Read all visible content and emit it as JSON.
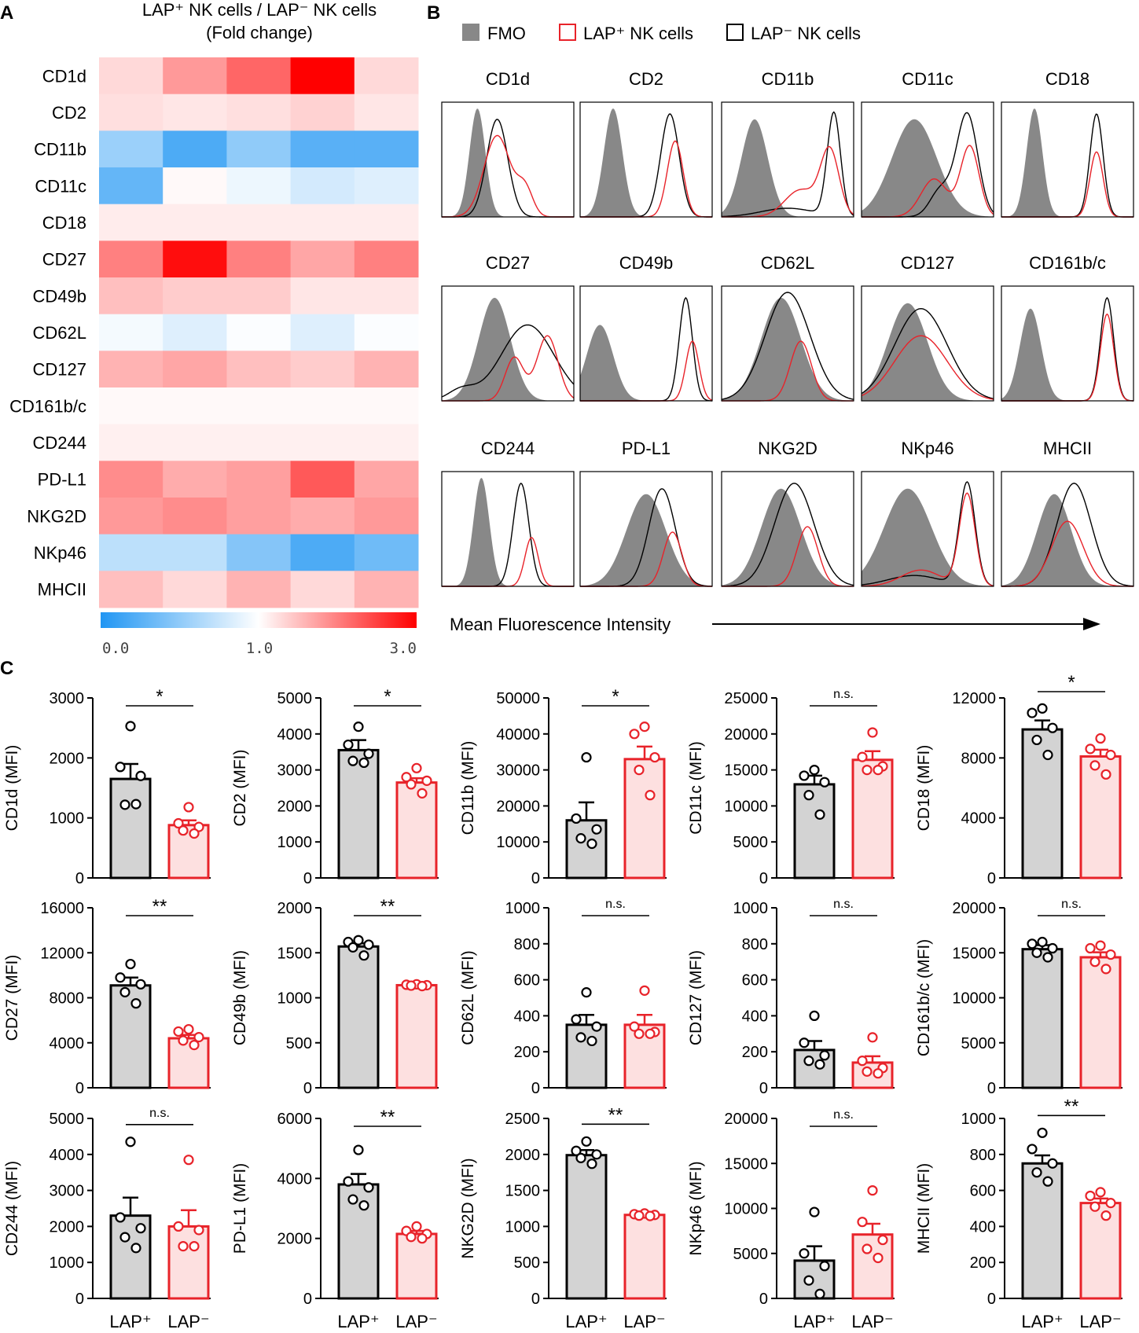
{
  "panels": {
    "a": "A",
    "b": "B",
    "c": "C"
  },
  "heatmap": {
    "title_line1": "LAP⁺ NK cells / LAP⁻ NK cells",
    "title_line2": "(Fold change)",
    "colorbar_labels": [
      "0.0",
      "1.0",
      "3.0"
    ],
    "colors": {
      "low": "#2196f3",
      "mid": "#ffffff",
      "high": "#ff0000"
    },
    "rows": [
      "CD1d",
      "CD2",
      "CD11b",
      "CD11c",
      "CD18",
      "CD27",
      "CD49b",
      "CD62L",
      "CD127",
      "CD161b/c",
      "CD244",
      "PD-L1",
      "NKG2D",
      "NKp46",
      "MHCII"
    ],
    "values": [
      [
        1.3,
        1.8,
        2.2,
        3.0,
        1.3
      ],
      [
        1.25,
        1.2,
        1.25,
        1.35,
        1.2
      ],
      [
        0.55,
        0.2,
        0.5,
        0.25,
        0.25
      ],
      [
        0.3,
        1.05,
        0.92,
        0.8,
        0.85
      ],
      [
        1.15,
        1.15,
        1.15,
        1.15,
        1.15
      ],
      [
        2.0,
        2.9,
        2.0,
        1.7,
        2.0
      ],
      [
        1.5,
        1.4,
        1.4,
        1.2,
        1.2
      ],
      [
        0.95,
        0.85,
        0.98,
        0.85,
        0.98
      ],
      [
        1.6,
        1.7,
        1.5,
        1.4,
        1.6
      ],
      [
        1.05,
        1.05,
        1.05,
        1.05,
        1.05
      ],
      [
        1.12,
        1.12,
        1.12,
        1.12,
        1.12
      ],
      [
        1.9,
        1.65,
        1.75,
        2.3,
        1.7
      ],
      [
        1.8,
        1.9,
        1.75,
        1.65,
        1.8
      ],
      [
        0.7,
        0.7,
        0.45,
        0.2,
        0.35
      ],
      [
        1.5,
        1.3,
        1.6,
        1.3,
        1.6
      ]
    ]
  },
  "histograms": {
    "legend": {
      "fmo": "FMO",
      "pos": "LAP⁺ NK cells",
      "neg": "LAP⁻ NK cells"
    },
    "colors": {
      "fmo": "#888888",
      "pos": "#e8232a",
      "neg": "#000000"
    },
    "x_axis_label": "Mean Fluorescence Intensity",
    "markers": [
      {
        "name": "CD1d",
        "fmo": [
          0.27,
          0.06,
          1.0
        ],
        "neg": [
          0.42,
          0.08,
          0.9
        ],
        "pos": [
          0.42,
          0.1,
          0.75,
          0.63,
          0.06,
          0.25
        ]
      },
      {
        "name": "CD2",
        "fmo": [
          0.25,
          0.07,
          1.0
        ],
        "neg": [
          0.68,
          0.07,
          0.95
        ],
        "pos": [
          0.72,
          0.06,
          0.7
        ]
      },
      {
        "name": "CD11b",
        "fmo": [
          0.25,
          0.1,
          0.9
        ],
        "neg": [
          0.85,
          0.05,
          0.95,
          0.5,
          0.2,
          0.08
        ],
        "pos": [
          0.82,
          0.07,
          0.6,
          0.6,
          0.12,
          0.25
        ]
      },
      {
        "name": "CD11c",
        "fmo": [
          0.4,
          0.17,
          0.9
        ],
        "neg": [
          0.8,
          0.08,
          0.95,
          0.6,
          0.08,
          0.25
        ],
        "pos": [
          0.82,
          0.07,
          0.65,
          0.55,
          0.1,
          0.35
        ]
      },
      {
        "name": "CD18",
        "fmo": [
          0.25,
          0.06,
          1.0
        ],
        "neg": [
          0.72,
          0.05,
          0.95
        ],
        "pos": [
          0.72,
          0.05,
          0.6
        ]
      },
      {
        "name": "CD27",
        "fmo": [
          0.4,
          0.12,
          0.95
        ],
        "neg": [
          0.65,
          0.2,
          0.7,
          0.15,
          0.1,
          0.1
        ],
        "pos": [
          0.8,
          0.08,
          0.6,
          0.55,
          0.07,
          0.4
        ]
      },
      {
        "name": "CD49b",
        "fmo": [
          0.15,
          0.1,
          0.7
        ],
        "neg": [
          0.8,
          0.05,
          0.95
        ],
        "pos": [
          0.85,
          0.05,
          0.55
        ]
      },
      {
        "name": "CD62L",
        "fmo": [
          0.45,
          0.15,
          0.95
        ],
        "neg": [
          0.5,
          0.17,
          1.0
        ],
        "pos": [
          0.6,
          0.08,
          0.55
        ]
      },
      {
        "name": "CD127",
        "fmo": [
          0.35,
          0.15,
          0.9
        ],
        "neg": [
          0.45,
          0.2,
          0.85
        ],
        "pos": [
          0.45,
          0.2,
          0.6
        ]
      },
      {
        "name": "CD161b/c",
        "fmo": [
          0.22,
          0.08,
          0.85
        ],
        "neg": [
          0.8,
          0.05,
          0.95
        ],
        "pos": [
          0.8,
          0.05,
          0.8
        ]
      },
      {
        "name": "CD244",
        "fmo": [
          0.3,
          0.06,
          1.0
        ],
        "neg": [
          0.6,
          0.06,
          0.95
        ],
        "pos": [
          0.68,
          0.05,
          0.45
        ]
      },
      {
        "name": "PD-L1",
        "fmo": [
          0.5,
          0.15,
          0.85
        ],
        "neg": [
          0.62,
          0.1,
          0.9
        ],
        "pos": [
          0.7,
          0.07,
          0.5
        ]
      },
      {
        "name": "NKG2D",
        "fmo": [
          0.45,
          0.15,
          0.9
        ],
        "neg": [
          0.55,
          0.15,
          0.95
        ],
        "pos": [
          0.65,
          0.08,
          0.55
        ]
      },
      {
        "name": "NKp46",
        "fmo": [
          0.35,
          0.18,
          0.9
        ],
        "neg": [
          0.8,
          0.06,
          0.95,
          0.4,
          0.2,
          0.1
        ],
        "pos": [
          0.8,
          0.06,
          0.85,
          0.45,
          0.15,
          0.15
        ]
      },
      {
        "name": "MHCII",
        "fmo": [
          0.4,
          0.13,
          0.85
        ],
        "neg": [
          0.55,
          0.13,
          0.95
        ],
        "pos": [
          0.5,
          0.12,
          0.6
        ]
      }
    ]
  },
  "chart_data": {
    "type": "bar",
    "categories": [
      "LAP⁺",
      "LAP⁻"
    ],
    "colors": {
      "pos_fill": "#d3d3d3",
      "pos_edge": "#000000",
      "neg_fill": "#fde0e0",
      "neg_edge": "#e8232a"
    },
    "panels": [
      {
        "ylabel": "CD1d (MFI)",
        "ylim": [
          0,
          3000
        ],
        "ticks": [
          "0",
          "1000",
          "2000",
          "3000"
        ],
        "means": [
          1650,
          880
        ],
        "sems": [
          250,
          80
        ],
        "points": [
          [
            2530,
            1850,
            1700,
            1220,
            1230
          ],
          [
            1180,
            910,
            850,
            790,
            740
          ]
        ],
        "sig": "*"
      },
      {
        "ylabel": "CD2 (MFI)",
        "ylim": [
          0,
          5000
        ],
        "ticks": [
          "0",
          "1000",
          "2000",
          "3000",
          "4000",
          "5000"
        ],
        "means": [
          3550,
          2650
        ],
        "sems": [
          280,
          120
        ],
        "points": [
          [
            4200,
            3700,
            3450,
            3250,
            3200
          ],
          [
            3050,
            2800,
            2700,
            2600,
            2350
          ]
        ],
        "sig": "*"
      },
      {
        "ylabel": "CD11b (MFI)",
        "ylim": [
          0,
          50000
        ],
        "ticks": [
          "0",
          "10000",
          "20000",
          "30000",
          "40000",
          "50000"
        ],
        "means": [
          16000,
          33000
        ],
        "sems": [
          5000,
          3500
        ],
        "points": [
          [
            33500,
            16500,
            13500,
            11000,
            9500
          ],
          [
            42000,
            40000,
            33500,
            30000,
            23000
          ]
        ],
        "sig": "*"
      },
      {
        "ylabel": "CD11c (MFI)",
        "ylim": [
          0,
          25000
        ],
        "ticks": [
          "0",
          "5000",
          "10000",
          "15000",
          "20000",
          "25000"
        ],
        "means": [
          13000,
          16400
        ],
        "sems": [
          1200,
          1200
        ],
        "points": [
          [
            15000,
            14200,
            13300,
            11500,
            8800
          ],
          [
            20200,
            16800,
            15500,
            15000,
            15000
          ]
        ],
        "sig": "n.s."
      },
      {
        "ylabel": "CD18 (MFI)",
        "ylim": [
          0,
          12000
        ],
        "ticks": [
          "0",
          "4000",
          "8000",
          "12000"
        ],
        "means": [
          9900,
          8100
        ],
        "sems": [
          600,
          450
        ],
        "points": [
          [
            11300,
            11000,
            10000,
            9200,
            8200
          ],
          [
            9300,
            8600,
            8200,
            7500,
            6900
          ]
        ],
        "sig": "*"
      },
      {
        "ylabel": "CD27 (MFI)",
        "ylim": [
          0,
          16000
        ],
        "ticks": [
          "0",
          "4000",
          "8000",
          "12000",
          "16000"
        ],
        "means": [
          9100,
          4400
        ],
        "sems": [
          700,
          300
        ],
        "points": [
          [
            11000,
            9800,
            9200,
            8500,
            7500
          ],
          [
            5200,
            5000,
            4500,
            4200,
            3800
          ]
        ],
        "sig": "**"
      },
      {
        "ylabel": "CD49b (MFI)",
        "ylim": [
          0,
          2000
        ],
        "ticks": [
          "0",
          "500",
          "1000",
          "1500",
          "2000"
        ],
        "means": [
          1570,
          1140
        ],
        "sems": [
          35,
          8
        ],
        "points": [
          [
            1640,
            1620,
            1590,
            1560,
            1470
          ],
          [
            1150,
            1145,
            1140,
            1135,
            1130
          ]
        ],
        "sig": "**"
      },
      {
        "ylabel": "CD62L (MFI)",
        "ylim": [
          0,
          1000
        ],
        "ticks": [
          "0",
          "200",
          "400",
          "600",
          "800",
          "1000"
        ],
        "means": [
          350,
          350
        ],
        "sems": [
          55,
          55
        ],
        "points": [
          [
            530,
            380,
            340,
            280,
            260
          ],
          [
            540,
            340,
            310,
            300,
            300
          ]
        ],
        "sig": "n.s."
      },
      {
        "ylabel": "CD127 (MFI)",
        "ylim": [
          0,
          1000
        ],
        "ticks": [
          "0",
          "200",
          "400",
          "600",
          "800",
          "1000"
        ],
        "means": [
          210,
          140
        ],
        "sems": [
          50,
          35
        ],
        "points": [
          [
            400,
            250,
            180,
            150,
            130
          ],
          [
            280,
            150,
            110,
            90,
            80
          ]
        ],
        "sig": "n.s."
      },
      {
        "ylabel": "CD161b/c (MFI)",
        "ylim": [
          0,
          20000
        ],
        "ticks": [
          "0",
          "5000",
          "10000",
          "15000",
          "20000"
        ],
        "means": [
          15400,
          14500
        ],
        "sems": [
          450,
          550
        ],
        "points": [
          [
            16200,
            16000,
            15500,
            15000,
            14500
          ],
          [
            15800,
            15500,
            14800,
            14000,
            13200
          ]
        ],
        "sig": "n.s."
      },
      {
        "ylabel": "CD244 (MFI)",
        "ylim": [
          0,
          5000
        ],
        "ticks": [
          "0",
          "1000",
          "2000",
          "3000",
          "4000",
          "5000"
        ],
        "means": [
          2300,
          2000
        ],
        "sems": [
          500,
          450
        ],
        "points": [
          [
            4350,
            2250,
            1950,
            1700,
            1400
          ],
          [
            3850,
            2000,
            1900,
            1450,
            1450
          ]
        ],
        "sig": "n.s."
      },
      {
        "ylabel": "PD-L1 (MFI)",
        "ylim": [
          0,
          6000
        ],
        "ticks": [
          "0",
          "2000",
          "4000",
          "6000"
        ],
        "means": [
          3800,
          2150
        ],
        "sems": [
          350,
          100
        ],
        "points": [
          [
            4950,
            3900,
            3700,
            3300,
            3100
          ],
          [
            2400,
            2250,
            2150,
            2050,
            2000
          ]
        ],
        "sig": "**"
      },
      {
        "ylabel": "NKG2D (MFI)",
        "ylim": [
          0,
          2500
        ],
        "ticks": [
          "0",
          "500",
          "1000",
          "1500",
          "2000",
          "2500"
        ],
        "means": [
          1990,
          1160
        ],
        "sems": [
          70,
          12
        ],
        "points": [
          [
            2180,
            2050,
            2000,
            1950,
            1870
          ],
          [
            1180,
            1170,
            1160,
            1150,
            1145
          ]
        ],
        "sig": "**"
      },
      {
        "ylabel": "NKp46 (MFI)",
        "ylim": [
          0,
          20000
        ],
        "ticks": [
          "0",
          "5000",
          "10000",
          "15000",
          "20000"
        ],
        "means": [
          4200,
          7100
        ],
        "sems": [
          1600,
          1200
        ],
        "points": [
          [
            9600,
            5000,
            3600,
            2000,
            500
          ],
          [
            12000,
            8500,
            6500,
            5500,
            4500
          ]
        ],
        "sig": "n.s."
      },
      {
        "ylabel": "MHCII (MFI)",
        "ylim": [
          0,
          1000
        ],
        "ticks": [
          "0",
          "200",
          "400",
          "600",
          "800",
          "1000"
        ],
        "means": [
          750,
          530
        ],
        "sems": [
          45,
          25
        ],
        "points": [
          [
            920,
            830,
            750,
            700,
            650
          ],
          [
            590,
            570,
            530,
            510,
            460
          ]
        ],
        "sig": "**"
      }
    ]
  }
}
